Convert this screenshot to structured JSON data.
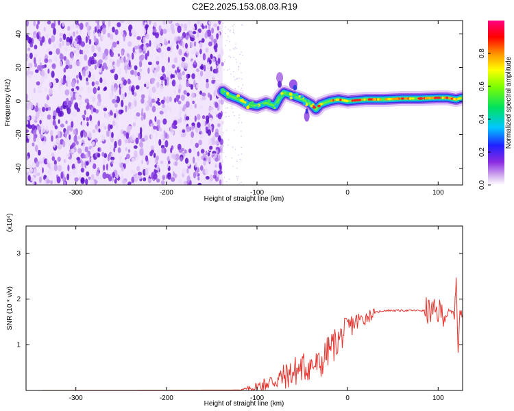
{
  "title": "C2E2.2025.153.08.03.R19",
  "chart_data": [
    {
      "type": "heatmap",
      "xlabel": "Height of straight line (km)",
      "ylabel": "Frequency (Hz)",
      "xlim": [
        -355,
        127
      ],
      "ylim": [
        -50,
        48
      ],
      "xticks": [
        -300,
        -200,
        -100,
        0,
        100
      ],
      "yticks": [
        -40,
        -20,
        0,
        20,
        40
      ],
      "noise_region_end_x": -138,
      "ridge": {
        "x": [
          -138,
          -130,
          -120,
          -110,
          -100,
          -90,
          -80,
          -75,
          -70,
          -60,
          -50,
          -40,
          -35,
          -30,
          -20,
          -10,
          0,
          20,
          40,
          60,
          80,
          100,
          110,
          120,
          127
        ],
        "y": [
          6,
          3,
          1,
          -2,
          -3,
          -1,
          -3,
          2,
          5,
          3,
          1,
          -2,
          -5,
          -2,
          0,
          1,
          0,
          1,
          1,
          1.5,
          1.5,
          2,
          2,
          1,
          2
        ]
      },
      "colorbar": {
        "label": "Normalized spectral amplitude",
        "range": [
          0.0,
          1.0
        ],
        "ticks": [
          "0.0",
          "0.2",
          "0.4",
          "0.6",
          "0.8"
        ]
      }
    },
    {
      "type": "line",
      "xlabel": "Height of straight line (km)",
      "ylabel": "SNR (10 * v/v)",
      "scale_note": "(x10⁴)",
      "xlim": [
        -355,
        127
      ],
      "ylim": [
        0,
        3.6
      ],
      "xticks": [
        -300,
        -200,
        -100,
        0,
        100
      ],
      "yticks": [
        1,
        2,
        3
      ],
      "color": "#e8302a",
      "series": [
        {
          "x": [
            -355,
            -120,
            -110,
            -100,
            -90,
            -80,
            -70,
            -60,
            -50,
            -40,
            -30,
            -25,
            -20,
            -15,
            -10,
            -5,
            0,
            5,
            10,
            20,
            30,
            40,
            60,
            80,
            90,
            95,
            100,
            105,
            110,
            115,
            118,
            120,
            122,
            124,
            127
          ],
          "y": [
            0.0,
            0.01,
            0.03,
            0.08,
            0.15,
            0.22,
            0.3,
            0.4,
            0.5,
            0.55,
            0.55,
            0.75,
            0.9,
            1.0,
            1.1,
            1.25,
            1.35,
            1.45,
            1.5,
            1.6,
            1.7,
            1.75,
            1.75,
            1.75,
            1.74,
            1.7,
            1.72,
            1.7,
            1.68,
            1.7,
            1.65,
            2.5,
            0.8,
            1.7,
            1.65
          ]
        }
      ]
    }
  ]
}
